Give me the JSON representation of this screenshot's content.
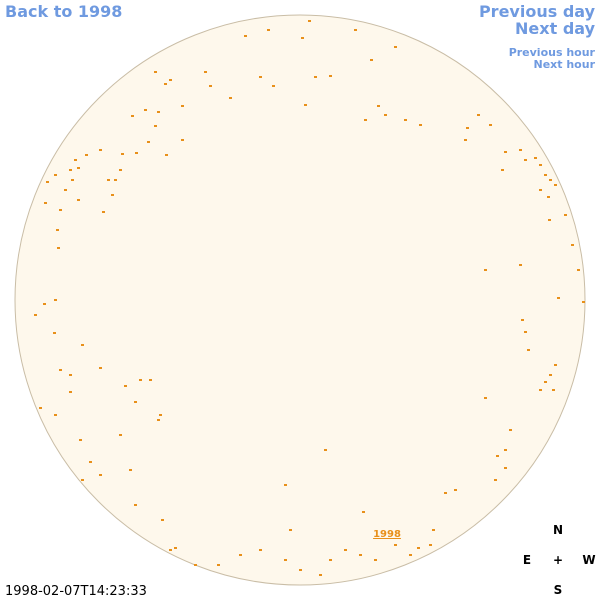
{
  "links": {
    "back": "Back to 1998",
    "previous_day": "Previous day",
    "next_day": "Next day",
    "previous_hour": "Previous hour",
    "next_hour": "Next hour"
  },
  "disk_label": "1998",
  "timestamp": "1998-02-07T14:23:33",
  "compass": {
    "north": "N",
    "east": "E",
    "center": "+",
    "west": "W",
    "south": "S"
  }
}
